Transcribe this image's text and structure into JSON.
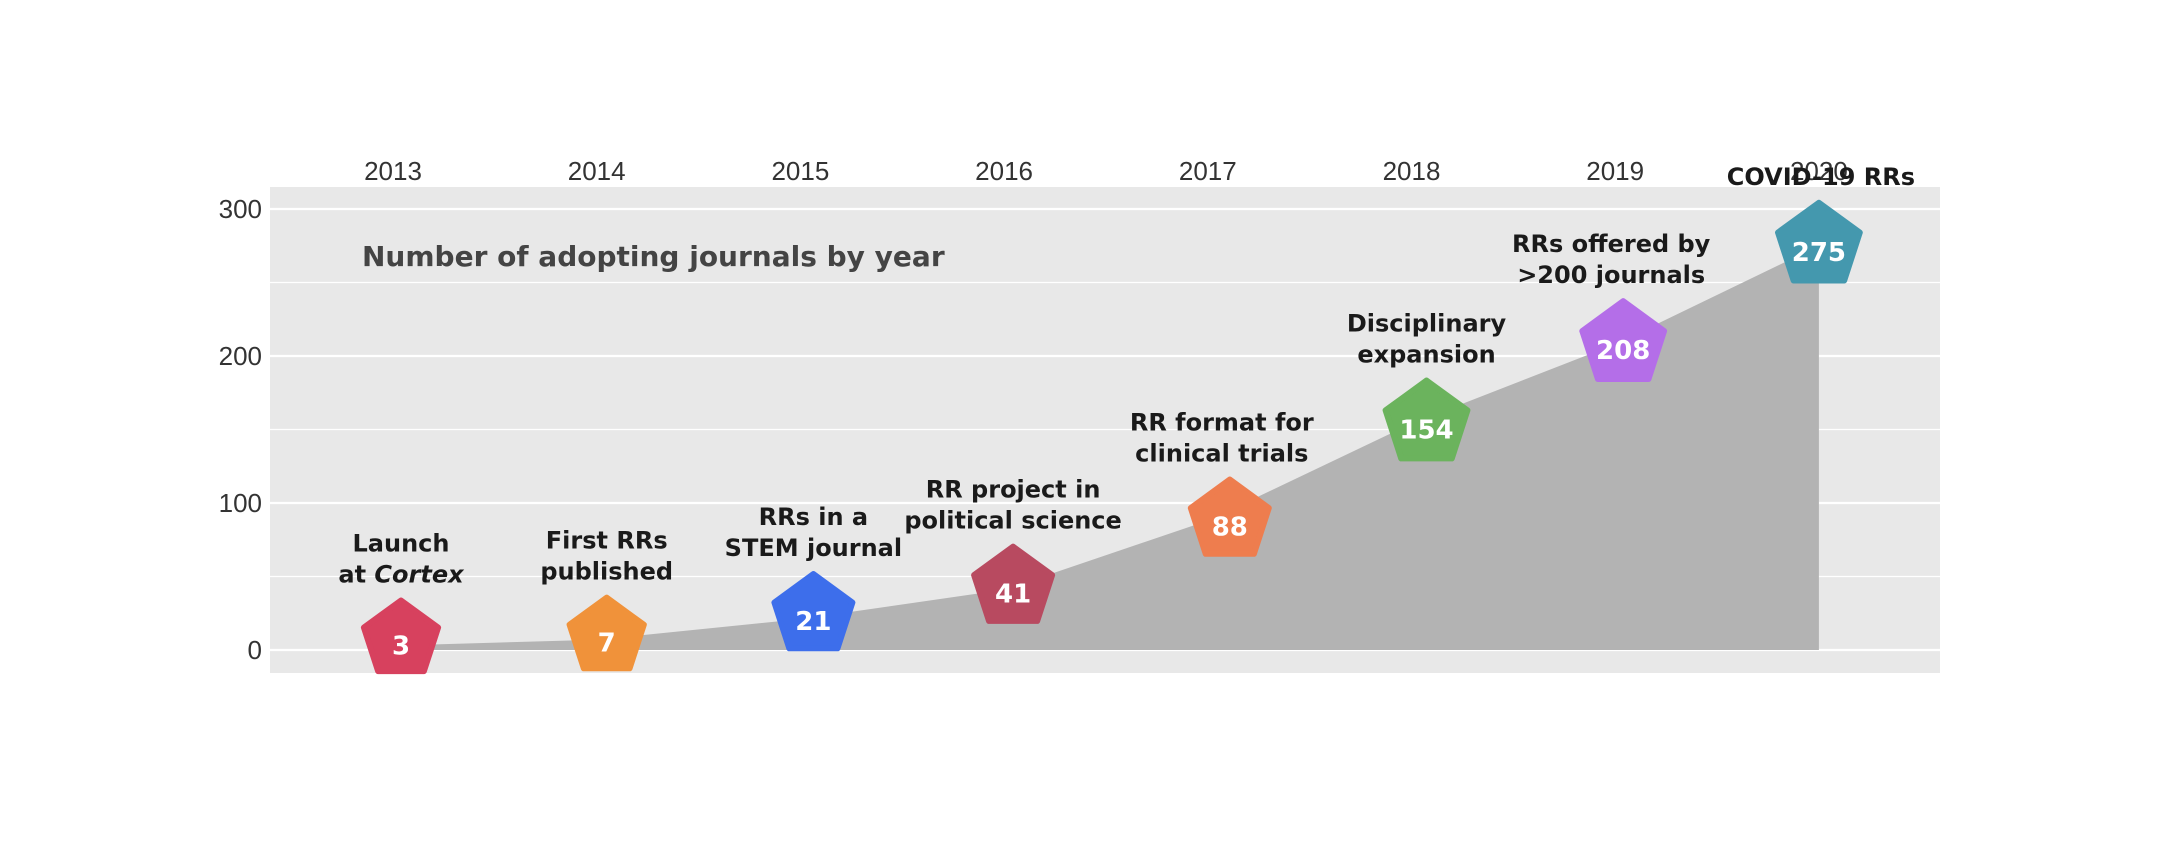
{
  "chart_data": {
    "type": "area",
    "title": "Number of adopting journals by year",
    "x": [
      2013,
      2014,
      2015,
      2016,
      2017,
      2018,
      2019,
      2020
    ],
    "x_tick_labels": [
      "2013",
      "2014",
      "2015",
      "2016",
      "2017",
      "2018",
      "2019",
      "2020"
    ],
    "values": [
      3,
      7,
      21,
      41,
      88,
      154,
      208,
      275
    ],
    "ylim": [
      -15,
      315
    ],
    "y_ticks": [
      0,
      100,
      200,
      300
    ],
    "y_tick_labels": [
      "0",
      "100",
      "200",
      "300"
    ],
    "grid": true,
    "x_axis_position": "top",
    "milestones": [
      {
        "year": 2013,
        "value": 3,
        "lines": [
          "Launch",
          "at Cortex"
        ],
        "italic_word": "Cortex",
        "color": "#d7415e"
      },
      {
        "year": 2014,
        "value": 7,
        "lines": [
          "First RRs",
          "published"
        ],
        "color": "#f0923a"
      },
      {
        "year": 2015,
        "value": 21,
        "lines": [
          "RRs in a",
          "STEM journal"
        ],
        "color": "#3d6eeb"
      },
      {
        "year": 2016,
        "value": 41,
        "lines": [
          "RR project in",
          "political science"
        ],
        "color": "#b84a60"
      },
      {
        "year": 2017,
        "value": 88,
        "lines": [
          "RR format for",
          "clinical trials"
        ],
        "color": "#ee7d4e"
      },
      {
        "year": 2018,
        "value": 154,
        "lines": [
          "Disciplinary",
          "expansion"
        ],
        "color": "#6bb35d"
      },
      {
        "year": 2019,
        "value": 208,
        "lines": [
          "RRs offered by",
          ">200 journals"
        ],
        "color": "#b46ee8"
      },
      {
        "year": 2020,
        "value": 275,
        "lines": [
          "COVID-19 RRs"
        ],
        "color": "#4498ae"
      }
    ],
    "colors": {
      "panel": "#e8e8e8",
      "area": "#b3b3b3",
      "grid": "#ffffff"
    }
  }
}
